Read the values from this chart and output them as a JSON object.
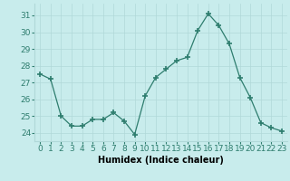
{
  "x": [
    0,
    1,
    2,
    3,
    4,
    5,
    6,
    7,
    8,
    9,
    10,
    11,
    12,
    13,
    14,
    15,
    16,
    17,
    18,
    19,
    20,
    21,
    22,
    23
  ],
  "y": [
    27.5,
    27.2,
    25.0,
    24.4,
    24.4,
    24.8,
    24.8,
    25.2,
    24.7,
    23.9,
    26.2,
    27.3,
    27.8,
    28.3,
    28.5,
    30.1,
    31.1,
    30.4,
    29.3,
    27.3,
    26.1,
    24.6,
    24.3,
    24.1
  ],
  "line_color": "#2e7d6e",
  "marker": "+",
  "marker_size": 4,
  "marker_linewidth": 1.2,
  "bg_color": "#c8ecec",
  "grid_color": "#b0d8d8",
  "xlabel": "Humidex (Indice chaleur)",
  "ylim": [
    23.5,
    31.7
  ],
  "yticks": [
    24,
    25,
    26,
    27,
    28,
    29,
    30,
    31
  ],
  "xticks": [
    0,
    1,
    2,
    3,
    4,
    5,
    6,
    7,
    8,
    9,
    10,
    11,
    12,
    13,
    14,
    15,
    16,
    17,
    18,
    19,
    20,
    21,
    22,
    23
  ],
  "axis_label_fontsize": 7,
  "tick_fontsize": 6.5
}
